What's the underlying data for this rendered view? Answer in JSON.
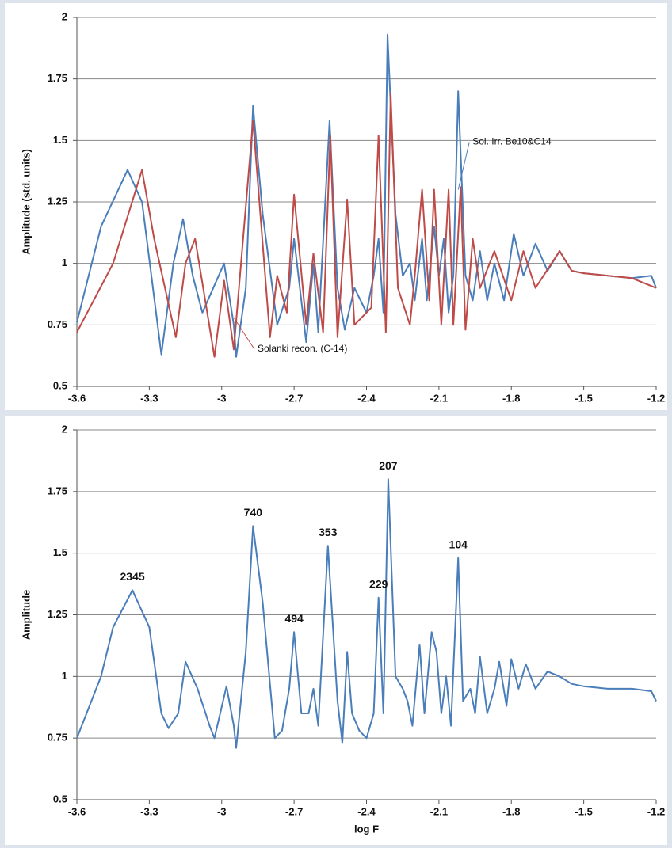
{
  "chart_data": [
    {
      "type": "line",
      "ylabel": "Amplitude (std. units)",
      "xlim": [
        -3.6,
        -1.2
      ],
      "xticks": [
        -3.6,
        -3.3,
        -3,
        -2.7,
        -2.4,
        -2.1,
        -1.8,
        -1.5,
        -1.2
      ],
      "ylim": [
        0.5,
        2
      ],
      "yticks": [
        0.5,
        0.75,
        1,
        1.25,
        1.5,
        1.75,
        2
      ],
      "grid": true,
      "series": [
        {
          "name": "Sol. Irr. Be10&C14",
          "color": "#4a7ebb",
          "x": [
            -3.6,
            -3.5,
            -3.39,
            -3.33,
            -3.25,
            -3.2,
            -3.16,
            -3.12,
            -3.08,
            -2.99,
            -2.95,
            -2.94,
            -2.9,
            -2.87,
            -2.83,
            -2.77,
            -2.72,
            -2.7,
            -2.65,
            -2.62,
            -2.6,
            -2.553,
            -2.52,
            -2.49,
            -2.45,
            -2.4,
            -2.37,
            -2.35,
            -2.33,
            -2.313,
            -2.28,
            -2.25,
            -2.22,
            -2.2,
            -2.17,
            -2.15,
            -2.12,
            -2.1,
            -2.08,
            -2.06,
            -2.04,
            -2.02,
            -1.99,
            -1.96,
            -1.93,
            -1.9,
            -1.87,
            -1.83,
            -1.79,
            -1.75,
            -1.7,
            -1.65,
            -1.6,
            -1.55,
            -1.5,
            -1.4,
            -1.3,
            -1.22,
            -1.2
          ],
          "values": [
            0.76,
            1.15,
            1.38,
            1.25,
            0.63,
            1.0,
            1.18,
            0.95,
            0.8,
            1.0,
            0.75,
            0.62,
            0.9,
            1.64,
            1.2,
            0.75,
            0.9,
            1.1,
            0.68,
            1.0,
            0.72,
            1.58,
            0.9,
            0.73,
            0.9,
            0.8,
            0.95,
            1.1,
            0.8,
            1.93,
            1.2,
            0.95,
            1.0,
            0.85,
            1.1,
            0.85,
            1.15,
            0.95,
            1.1,
            0.8,
            0.95,
            1.7,
            0.95,
            0.85,
            1.05,
            0.85,
            1.0,
            0.85,
            1.12,
            0.95,
            1.08,
            0.97,
            1.05,
            0.97,
            0.96,
            0.95,
            0.94,
            0.95,
            0.9
          ]
        },
        {
          "name": "Solanki recon. (C-14)",
          "color": "#be4b48",
          "x": [
            -3.6,
            -3.45,
            -3.33,
            -3.28,
            -3.19,
            -3.15,
            -3.11,
            -3.06,
            -3.03,
            -2.99,
            -2.95,
            -2.87,
            -2.8,
            -2.77,
            -2.73,
            -2.7,
            -2.65,
            -2.62,
            -2.58,
            -2.55,
            -2.52,
            -2.48,
            -2.45,
            -2.38,
            -2.35,
            -2.32,
            -2.3,
            -2.27,
            -2.22,
            -2.2,
            -2.17,
            -2.14,
            -2.12,
            -2.09,
            -2.06,
            -2.04,
            -2.01,
            -1.99,
            -1.96,
            -1.93,
            -1.87,
            -1.8,
            -1.75,
            -1.7,
            -1.6,
            -1.55,
            -1.5,
            -1.4,
            -1.3,
            -1.2
          ],
          "values": [
            0.72,
            1.0,
            1.38,
            1.1,
            0.7,
            1.0,
            1.1,
            0.8,
            0.62,
            0.93,
            0.65,
            1.58,
            0.7,
            0.95,
            0.8,
            1.28,
            0.75,
            1.04,
            0.72,
            1.52,
            0.7,
            1.26,
            0.75,
            0.82,
            1.52,
            0.72,
            1.69,
            0.9,
            0.75,
            0.95,
            1.3,
            0.85,
            1.3,
            0.75,
            1.3,
            0.75,
            1.31,
            0.73,
            1.1,
            0.9,
            1.05,
            0.85,
            1.05,
            0.9,
            1.05,
            0.97,
            0.96,
            0.95,
            0.94,
            0.9
          ]
        }
      ]
    },
    {
      "type": "line",
      "ylabel": "Amplitude",
      "xlabel": "log F",
      "xlim": [
        -3.6,
        -1.2
      ],
      "xticks": [
        -3.6,
        -3.3,
        -3,
        -2.7,
        -2.4,
        -2.1,
        -1.8,
        -1.5,
        -1.2
      ],
      "ylim": [
        0.5,
        2
      ],
      "yticks": [
        0.5,
        0.75,
        1,
        1.25,
        1.5,
        1.75,
        2
      ],
      "grid": true,
      "series": [
        {
          "color": "#4a7ebb",
          "x": [
            -3.6,
            -3.5,
            -3.45,
            -3.37,
            -3.3,
            -3.25,
            -3.22,
            -3.18,
            -3.15,
            -3.1,
            -3.05,
            -3.03,
            -2.98,
            -2.95,
            -2.94,
            -2.9,
            -2.87,
            -2.83,
            -2.78,
            -2.75,
            -2.72,
            -2.7,
            -2.67,
            -2.64,
            -2.62,
            -2.6,
            -2.56,
            -2.52,
            -2.5,
            -2.48,
            -2.46,
            -2.43,
            -2.4,
            -2.37,
            -2.35,
            -2.33,
            -2.31,
            -2.28,
            -2.25,
            -2.23,
            -2.21,
            -2.18,
            -2.16,
            -2.13,
            -2.11,
            -2.09,
            -2.07,
            -2.05,
            -2.02,
            -2.0,
            -1.97,
            -1.95,
            -1.93,
            -1.9,
            -1.87,
            -1.85,
            -1.82,
            -1.8,
            -1.77,
            -1.74,
            -1.7,
            -1.65,
            -1.6,
            -1.55,
            -1.5,
            -1.4,
            -1.3,
            -1.22,
            -1.2
          ],
          "values": [
            0.75,
            1.0,
            1.2,
            1.35,
            1.2,
            0.85,
            0.79,
            0.85,
            1.06,
            0.95,
            0.8,
            0.75,
            0.96,
            0.8,
            0.71,
            1.1,
            1.61,
            1.3,
            0.75,
            0.78,
            0.95,
            1.18,
            0.85,
            0.85,
            0.95,
            0.8,
            1.53,
            0.9,
            0.73,
            1.1,
            0.85,
            0.78,
            0.75,
            0.85,
            1.32,
            0.85,
            1.8,
            1.0,
            0.95,
            0.9,
            0.8,
            1.13,
            0.85,
            1.18,
            1.1,
            0.85,
            1.0,
            0.8,
            1.48,
            0.9,
            0.95,
            0.85,
            1.08,
            0.85,
            0.95,
            1.06,
            0.88,
            1.07,
            0.95,
            1.05,
            0.95,
            1.02,
            1.0,
            0.97,
            0.96,
            0.95,
            0.95,
            0.94,
            0.9
          ]
        }
      ],
      "annotations": [
        {
          "text": "2345",
          "x": -3.37,
          "y": 1.35
        },
        {
          "text": "740",
          "x": -2.87,
          "y": 1.61
        },
        {
          "text": "494",
          "x": -2.7,
          "y": 1.18
        },
        {
          "text": "353",
          "x": -2.56,
          "y": 1.53
        },
        {
          "text": "229",
          "x": -2.35,
          "y": 1.32
        },
        {
          "text": "207",
          "x": -2.31,
          "y": 1.8
        },
        {
          "text": "104",
          "x": -2.02,
          "y": 1.48
        }
      ]
    }
  ]
}
